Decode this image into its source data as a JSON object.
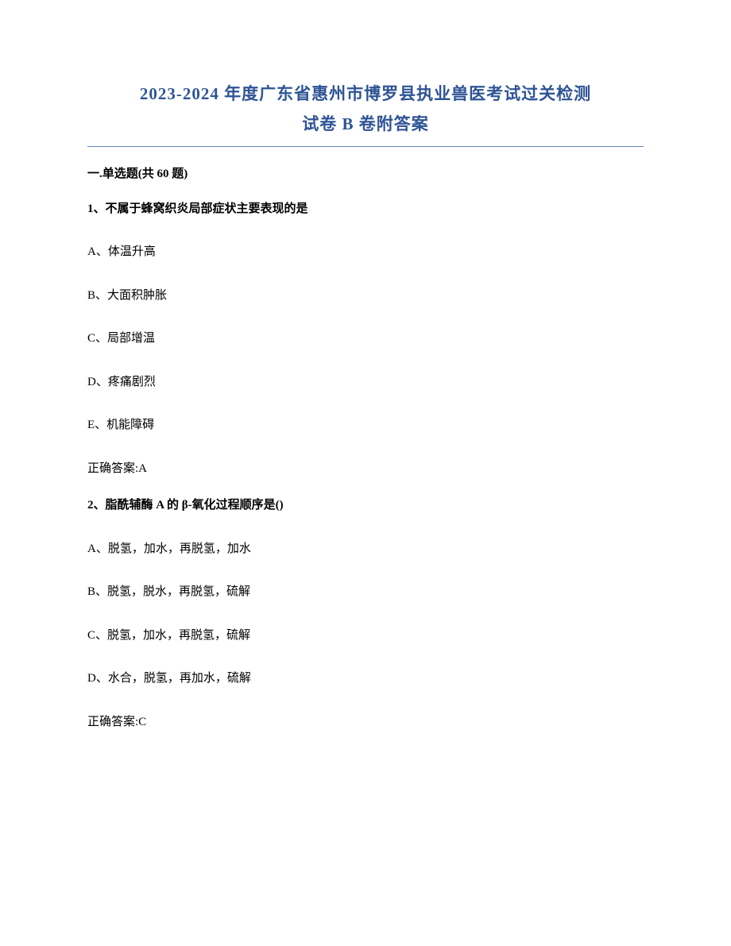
{
  "title": {
    "line1": "2023-2024 年度广东省惠州市博罗县执业兽医考试过关检测",
    "line2": "试卷 B 卷附答案",
    "color": "#2e5496",
    "fontsize": 21
  },
  "section_header": "一.单选题(共 60 题)",
  "questions": [
    {
      "number": "1、",
      "text": "不属于蜂窝织炎局部症状主要表现的是",
      "options": [
        "A、体温升高",
        "B、大面积肿胀",
        "C、局部增温",
        "D、疼痛剧烈",
        "E、机能障碍"
      ],
      "answer": "正确答案:A"
    },
    {
      "number": "2、",
      "text": "脂酰辅酶 A 的 β-氧化过程顺序是()",
      "options": [
        "A、脱氢，加水，再脱氢，加水",
        "B、脱氢，脱水，再脱氢，硫解",
        "C、脱氢，加水，再脱氢，硫解",
        "D、水合，脱氢，再加水，硫解"
      ],
      "answer": "正确答案:C"
    }
  ],
  "styles": {
    "body_fontsize": 15,
    "text_color": "#000000",
    "background_color": "#ffffff",
    "divider_color": "#6688bb",
    "option_spacing": 32,
    "question_spacing": 24
  }
}
